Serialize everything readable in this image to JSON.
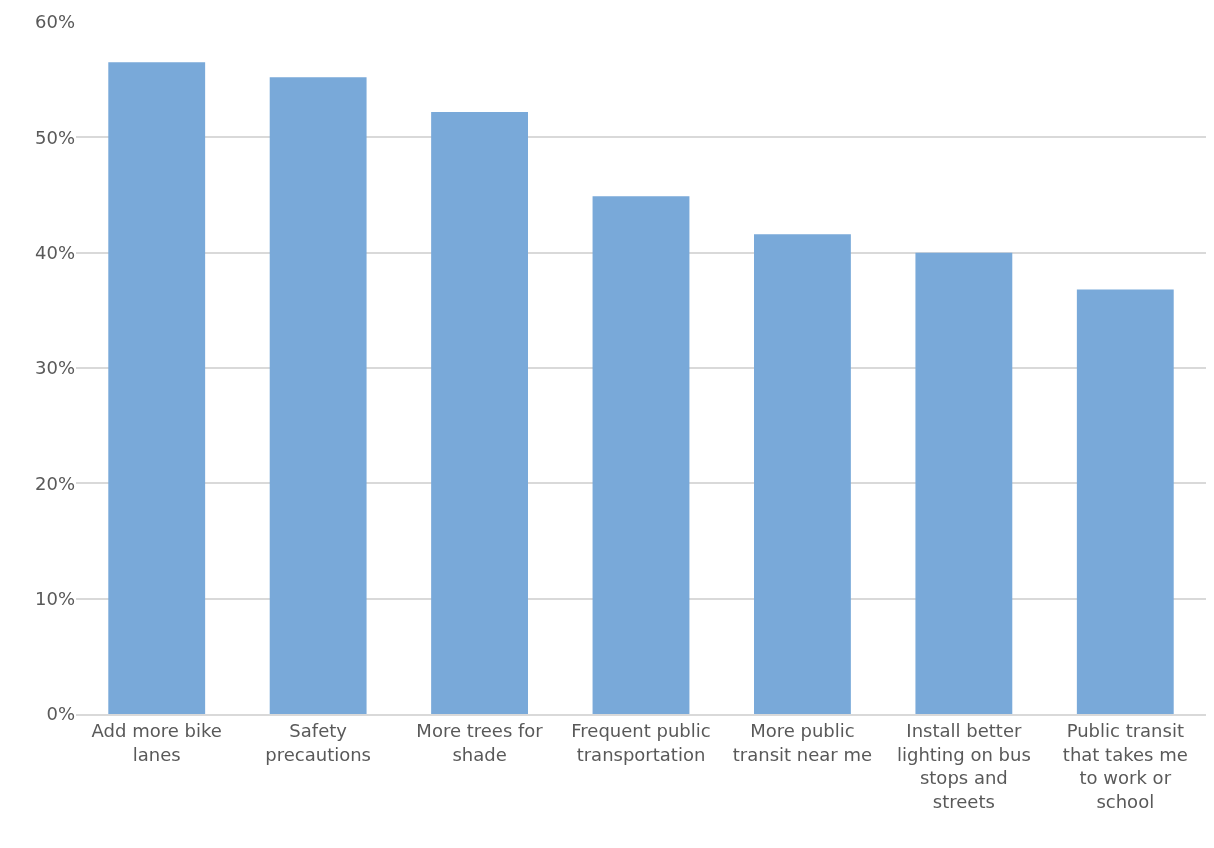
{
  "chart_data": {
    "type": "bar",
    "categories": [
      "Add more bike lanes",
      "Safety precautions",
      "More trees for shade",
      "Frequent public transportation",
      "More public transit near me",
      "Install better lighting on bus stops and streets",
      "Public transit that takes me to work or school"
    ],
    "values": [
      56.5,
      55.2,
      52.2,
      44.9,
      41.6,
      40.0,
      36.8
    ],
    "color": "#79a9d9",
    "ylim": [
      0,
      60
    ],
    "yticks": [
      {
        "value": 0,
        "label": "0%"
      },
      {
        "value": 10,
        "label": "10%"
      },
      {
        "value": 20,
        "label": "20%"
      },
      {
        "value": 30,
        "label": "30%"
      },
      {
        "value": 40,
        "label": "40%"
      },
      {
        "value": 50,
        "label": "50%"
      },
      {
        "value": 60,
        "label": "60%"
      }
    ],
    "grid": "y"
  }
}
